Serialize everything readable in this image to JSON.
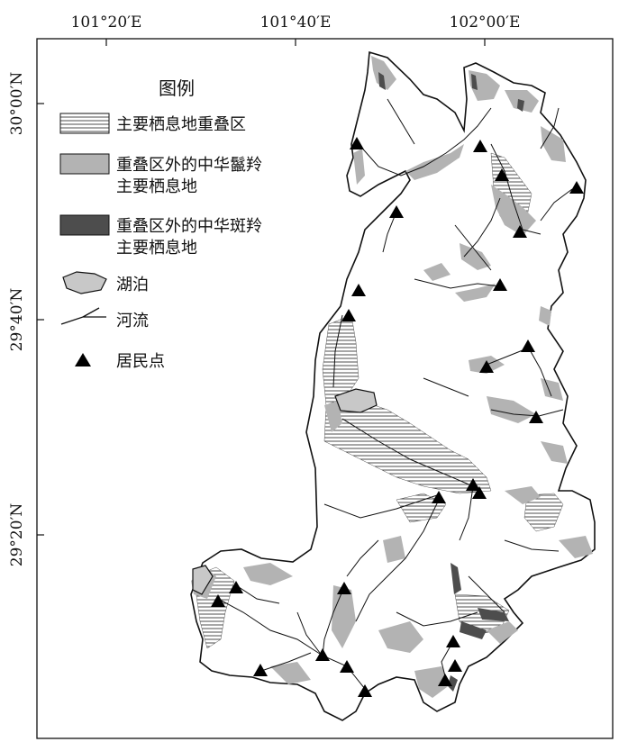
{
  "map": {
    "axes": {
      "top_ticks": [
        "101°20′E",
        "101°40′E",
        "102°00′E"
      ],
      "left_ticks": [
        "30°00′N",
        "29°40′N",
        "29°20′N"
      ]
    },
    "legend": {
      "title": "图例",
      "items": [
        {
          "key": "overlap",
          "lines": [
            "主要栖息地重叠区"
          ]
        },
        {
          "key": "takin",
          "lines": [
            "重叠区外的中华鬣羚",
            "主要栖息地"
          ]
        },
        {
          "key": "goral",
          "lines": [
            "重叠区外的中华斑羚",
            "主要栖息地"
          ]
        },
        {
          "key": "lake",
          "lines": [
            "湖泊"
          ]
        },
        {
          "key": "river",
          "lines": [
            "河流"
          ]
        },
        {
          "key": "settlement",
          "lines": [
            "居民点"
          ]
        }
      ]
    },
    "colors": {
      "frame": "#111111",
      "serow_habitat": "#b3b3b3",
      "goral_habitat": "#4d4d4d",
      "lake": "#c8c8c8",
      "overlap_hatch": "#222222",
      "river": "#111111"
    },
    "settlement_count": 28
  }
}
